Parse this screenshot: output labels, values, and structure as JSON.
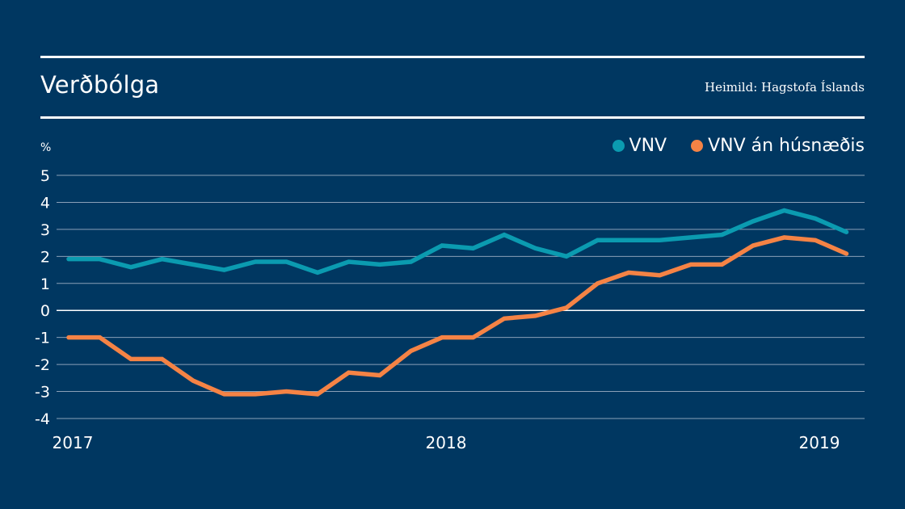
{
  "header": {
    "title": "Verðbólga",
    "source": "Heimild: Hagstofa Íslands"
  },
  "colors": {
    "background": "#003761",
    "vnv": "#0b9bb0",
    "vnv_excl_housing": "#f58345",
    "grid": "#8aa0b8",
    "zero_line": "#ffffff"
  },
  "chart_data": {
    "type": "line",
    "title": "Verðbólga",
    "xlabel": "",
    "ylabel": "%",
    "ylim": [
      -4,
      5
    ],
    "yticks": [
      5,
      4,
      3,
      2,
      1,
      0,
      -1,
      -2,
      -3,
      -4
    ],
    "ytick_labels": [
      "5",
      "4",
      "3",
      "2",
      "1",
      "0",
      "-1",
      "-2",
      "-3",
      "-4"
    ],
    "xtick_labels": [
      {
        "label": "2017",
        "index": 0
      },
      {
        "label": "2018",
        "index": 12
      },
      {
        "label": "2019",
        "index": 24
      }
    ],
    "x": [
      "2017-01",
      "2017-02",
      "2017-03",
      "2017-04",
      "2017-05",
      "2017-06",
      "2017-07",
      "2017-08",
      "2017-09",
      "2017-10",
      "2017-11",
      "2017-12",
      "2018-01",
      "2018-02",
      "2018-03",
      "2018-04",
      "2018-05",
      "2018-06",
      "2018-07",
      "2018-08",
      "2018-09",
      "2018-10",
      "2018-11",
      "2018-12",
      "2019-01",
      "2019-02"
    ],
    "grid": true,
    "legend": "top-right",
    "series": [
      {
        "name": "VNV",
        "color": "#0b9bb0",
        "values": [
          1.9,
          1.9,
          1.6,
          1.9,
          1.7,
          1.5,
          1.8,
          1.8,
          1.4,
          1.8,
          1.7,
          1.8,
          2.4,
          2.3,
          2.8,
          2.3,
          2.0,
          2.6,
          2.6,
          2.6,
          2.7,
          2.8,
          3.3,
          3.7,
          3.4,
          2.9
        ]
      },
      {
        "name": "VNV án húsnæðis",
        "color": "#f58345",
        "values": [
          -1.0,
          -1.0,
          -1.8,
          -1.8,
          -2.6,
          -3.1,
          -3.1,
          -3.0,
          -3.1,
          -2.3,
          -2.4,
          -1.5,
          -1.0,
          -1.0,
          -0.3,
          -0.2,
          0.1,
          1.0,
          1.4,
          1.3,
          1.7,
          1.7,
          2.4,
          2.7,
          2.6,
          2.1
        ]
      }
    ]
  }
}
